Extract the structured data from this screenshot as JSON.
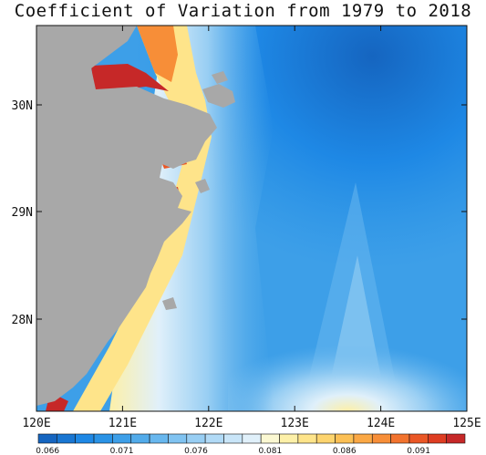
{
  "title": "Coefficient of Variation from 1979 to 2018",
  "map": {
    "x_ticks": [
      "120E",
      "121E",
      "122E",
      "123E",
      "124E",
      "125E"
    ],
    "y_ticks": [
      "30N",
      "29N",
      "28N"
    ],
    "land_color": "#a8a8a8"
  },
  "colorbar": {
    "labels": [
      "0.066",
      "0.071",
      "0.076",
      "0.081",
      "0.086",
      "0.091"
    ],
    "colors": [
      "#1565c0",
      "#1976d2",
      "#1e88e5",
      "#2a93e6",
      "#3d9fe8",
      "#52abea",
      "#68b7ee",
      "#80c3f1",
      "#98cef3",
      "#b1daf6",
      "#c9e5f8",
      "#e0f0fa",
      "#fbf8d2",
      "#fdf0a8",
      "#fee48a",
      "#fdd46e",
      "#fcc055",
      "#fba845",
      "#f78e38",
      "#f2732e",
      "#ea5726",
      "#de3d22",
      "#c62828"
    ]
  }
}
